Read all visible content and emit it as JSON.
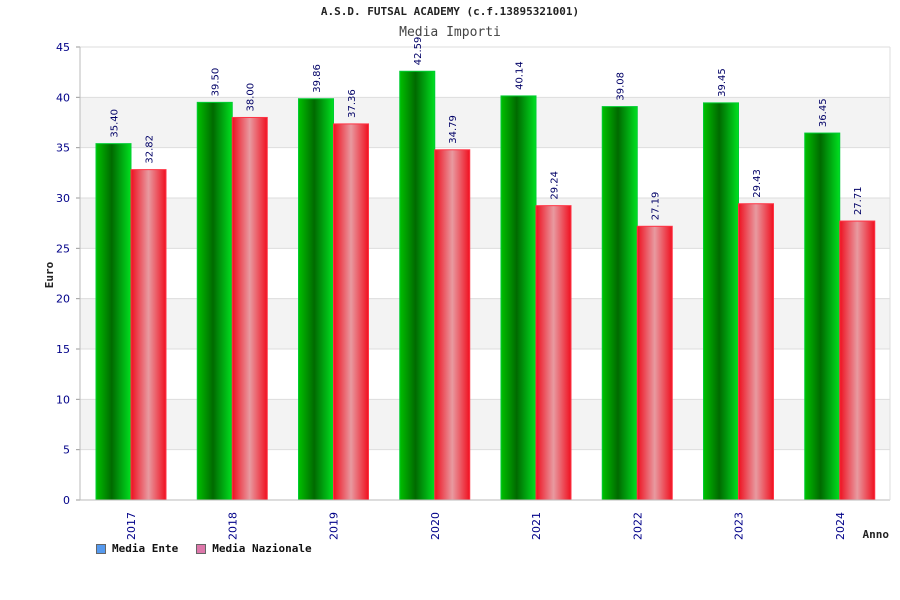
{
  "title": "A.S.D. FUTSAL ACADEMY (c.f.13895321001)",
  "subtitle": "Media Importi",
  "chart_data": {
    "type": "bar",
    "categories": [
      "2017",
      "2018",
      "2019",
      "2020",
      "2021",
      "2022",
      "2023",
      "2024"
    ],
    "series": [
      {
        "name": "Media Ente",
        "values": [
          35.4,
          39.5,
          39.86,
          42.59,
          40.14,
          39.08,
          39.45,
          36.45
        ],
        "labels": [
          "35.40",
          "39.50",
          "39.86",
          "42.59",
          "40.14",
          "39.08",
          "39.45",
          "36.45"
        ],
        "color": "#00a000"
      },
      {
        "name": "Media Nazionale",
        "values": [
          32.82,
          38.0,
          37.36,
          34.79,
          29.24,
          27.19,
          29.43,
          27.71
        ],
        "labels": [
          "32.82",
          "38.00",
          "37.36",
          "34.79",
          "29.24",
          "27.19",
          "29.43",
          "27.71"
        ],
        "color": "#ee1122"
      }
    ],
    "xlabel": "Anno",
    "ylabel": "Euro",
    "ylim": [
      0,
      45
    ],
    "yticks": [
      "0",
      "5",
      "10",
      "15",
      "20",
      "25",
      "30",
      "35",
      "40",
      "45"
    ],
    "grid": true,
    "legend_position": "bottom-left",
    "legend_colors": [
      "#5599ee",
      "#dd77aa"
    ]
  }
}
